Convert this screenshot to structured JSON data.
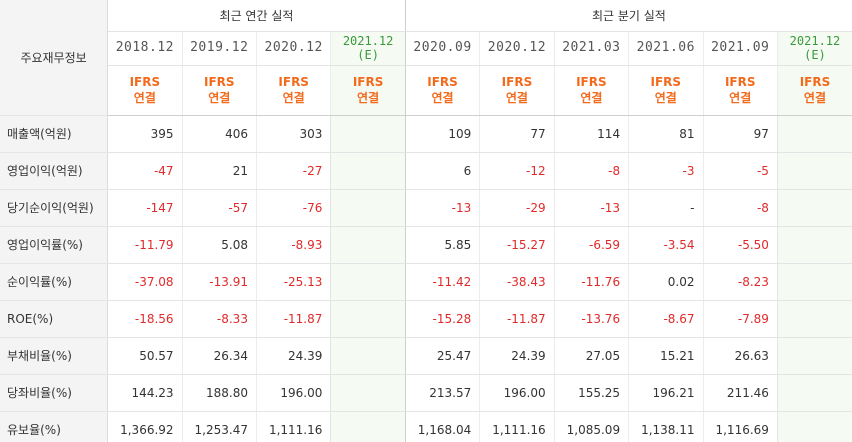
{
  "header": {
    "corner": "주요재무정보",
    "annual_group": "최근 연간 실적",
    "quarter_group": "최근 분기 실적",
    "annual_periods": [
      {
        "date": "2018.12",
        "std": "IFRS",
        "type": "연결"
      },
      {
        "date": "2019.12",
        "std": "IFRS",
        "type": "연결"
      },
      {
        "date": "2020.12",
        "std": "IFRS",
        "type": "연결"
      },
      {
        "date": "2021.12",
        "est": "(E)",
        "std": "IFRS",
        "type": "연결"
      }
    ],
    "quarter_periods": [
      {
        "date": "2020.09",
        "std": "IFRS",
        "type": "연결"
      },
      {
        "date": "2020.12",
        "std": "IFRS",
        "type": "연결"
      },
      {
        "date": "2021.03",
        "std": "IFRS",
        "type": "연결"
      },
      {
        "date": "2021.06",
        "std": "IFRS",
        "type": "연결"
      },
      {
        "date": "2021.09",
        "std": "IFRS",
        "type": "연결"
      },
      {
        "date": "2021.12",
        "est": "(E)",
        "std": "IFRS",
        "type": "연결"
      }
    ]
  },
  "rows": [
    {
      "label": "매출액(억원)",
      "values": [
        "395",
        "406",
        "303",
        "",
        "109",
        "77",
        "114",
        "81",
        "97",
        ""
      ]
    },
    {
      "label": "영업이익(억원)",
      "values": [
        "-47",
        "21",
        "-27",
        "",
        "6",
        "-12",
        "-8",
        "-3",
        "-5",
        ""
      ]
    },
    {
      "label": "당기순이익(억원)",
      "values": [
        "-147",
        "-57",
        "-76",
        "",
        "-13",
        "-29",
        "-13",
        "-",
        "-8",
        ""
      ]
    },
    {
      "label": "영업이익률(%)",
      "values": [
        "-11.79",
        "5.08",
        "-8.93",
        "",
        "5.85",
        "-15.27",
        "-6.59",
        "-3.54",
        "-5.50",
        ""
      ]
    },
    {
      "label": "순이익률(%)",
      "values": [
        "-37.08",
        "-13.91",
        "-25.13",
        "",
        "-11.42",
        "-38.43",
        "-11.76",
        "0.02",
        "-8.23",
        ""
      ]
    },
    {
      "label": "ROE(%)",
      "values": [
        "-18.56",
        "-8.33",
        "-11.87",
        "",
        "-15.28",
        "-11.87",
        "-13.76",
        "-8.67",
        "-7.89",
        ""
      ]
    },
    {
      "label": "부채비율(%)",
      "values": [
        "50.57",
        "26.34",
        "24.39",
        "",
        "25.47",
        "24.39",
        "27.05",
        "15.21",
        "26.63",
        ""
      ]
    },
    {
      "label": "당좌비율(%)",
      "values": [
        "144.23",
        "188.80",
        "196.00",
        "",
        "213.57",
        "196.00",
        "155.25",
        "196.21",
        "211.46",
        ""
      ]
    },
    {
      "label": "유보율(%)",
      "values": [
        "1,366.92",
        "1,253.47",
        "1,111.16",
        "",
        "1,168.04",
        "1,111.16",
        "1,085.09",
        "1,138.11",
        "1,116.69",
        ""
      ]
    }
  ],
  "colors": {
    "negative": "#e02a2a",
    "ifrs": "#f26b1d",
    "estimate_bg": "#f5faf3",
    "estimate_text": "#3a9a3a"
  }
}
